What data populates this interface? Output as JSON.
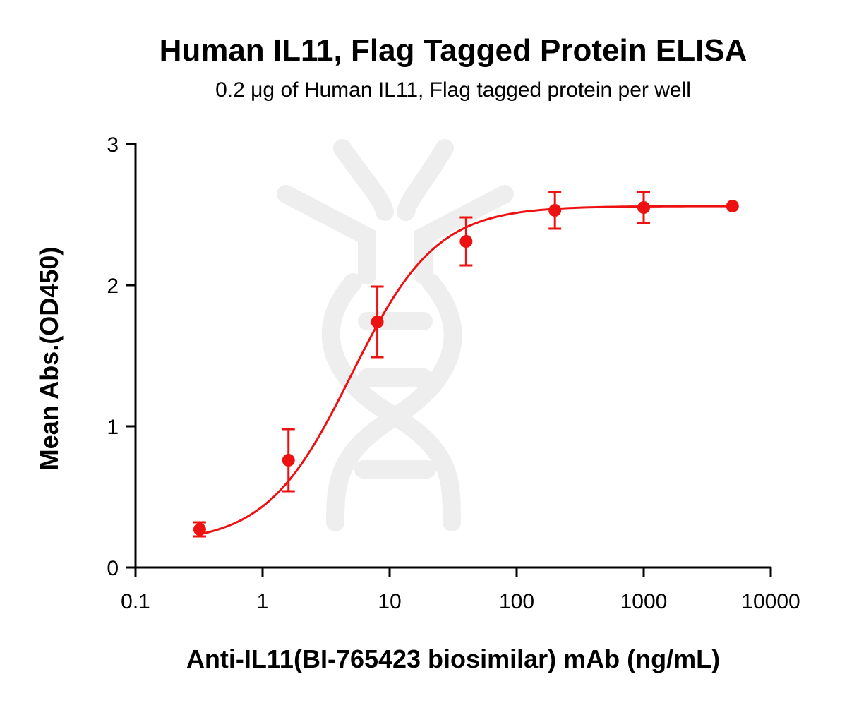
{
  "chart_data": {
    "type": "scatter",
    "title": "Human IL11, Flag Tagged Protein ELISA",
    "subtitle": "0.2 μg of Human IL11, Flag tagged protein per well",
    "xlabel": "Anti-IL11(BI-765423 biosimilar) mAb (ng/mL)",
    "ylabel": "Mean Abs.(OD450)",
    "xscale": "log",
    "xlim": [
      0.1,
      10000
    ],
    "ylim": [
      0,
      3
    ],
    "x_ticks": [
      0.1,
      1,
      10,
      100,
      1000,
      10000
    ],
    "x_tick_labels": [
      "0.1",
      "1",
      "10",
      "100",
      "1000",
      "10000"
    ],
    "y_ticks": [
      0,
      1,
      2,
      3
    ],
    "y_tick_labels": [
      "0",
      "1",
      "2",
      "3"
    ],
    "points": [
      {
        "x": 0.32,
        "y": 0.27,
        "yerr": 0.05
      },
      {
        "x": 1.6,
        "y": 0.76,
        "yerr": 0.22
      },
      {
        "x": 8,
        "y": 1.74,
        "yerr": 0.25
      },
      {
        "x": 40,
        "y": 2.31,
        "yerr": 0.17
      },
      {
        "x": 200,
        "y": 2.53,
        "yerr": 0.13
      },
      {
        "x": 1000,
        "y": 2.55,
        "yerr": 0.11
      },
      {
        "x": 5000,
        "y": 2.56,
        "yerr": 0.0
      }
    ],
    "fit": {
      "model": "4PL",
      "bottom": 0.17,
      "top": 2.56,
      "ec50": 5.0,
      "hill": 1.3
    },
    "color": "#ee1111",
    "grid": false,
    "legend": "none"
  }
}
